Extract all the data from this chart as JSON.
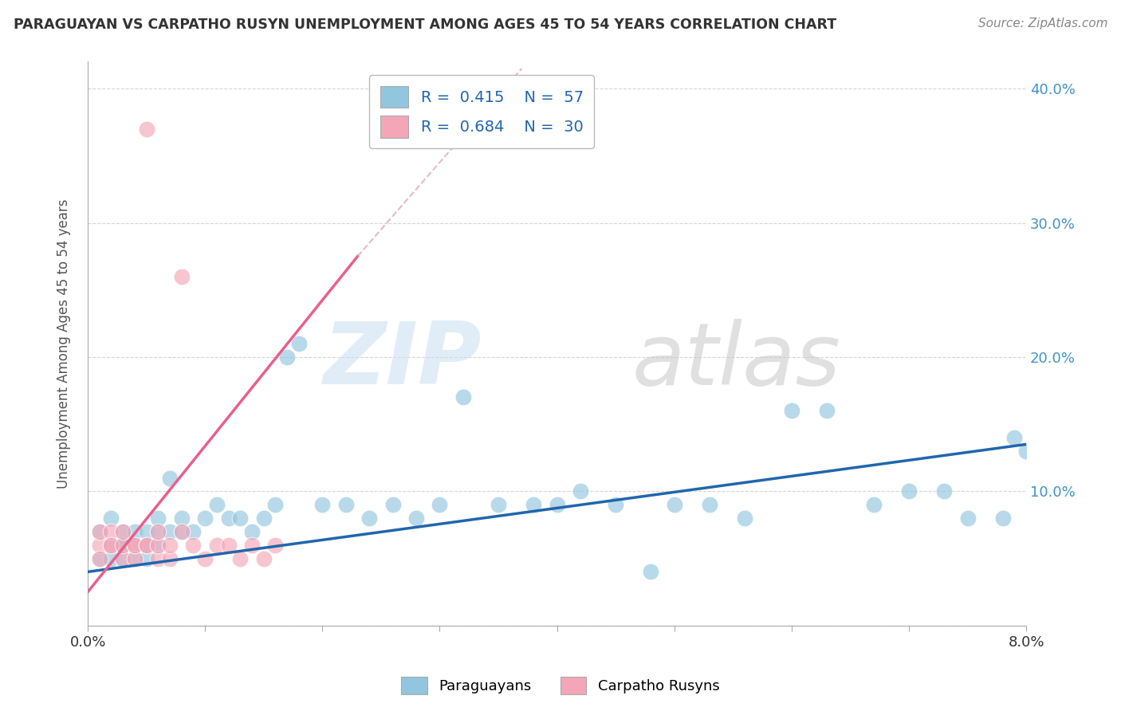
{
  "title": "PARAGUAYAN VS CARPATHO RUSYN UNEMPLOYMENT AMONG AGES 45 TO 54 YEARS CORRELATION CHART",
  "source": "Source: ZipAtlas.com",
  "ylabel": "Unemployment Among Ages 45 to 54 years",
  "legend_label_blue": "Paraguayans",
  "legend_label_pink": "Carpatho Rusyns",
  "blue_color": "#92c5de",
  "pink_color": "#f4a6b8",
  "blue_line_color": "#2166ac",
  "pink_line_color": "#e8608a",
  "pink_dash_color": "#d4a0b0",
  "xlim": [
    0.0,
    0.08
  ],
  "ylim": [
    0.0,
    0.42
  ],
  "blue_scatter_x": [
    0.001,
    0.001,
    0.002,
    0.002,
    0.002,
    0.003,
    0.003,
    0.003,
    0.003,
    0.004,
    0.004,
    0.004,
    0.005,
    0.005,
    0.005,
    0.006,
    0.006,
    0.006,
    0.007,
    0.007,
    0.008,
    0.008,
    0.009,
    0.01,
    0.011,
    0.012,
    0.013,
    0.014,
    0.015,
    0.016,
    0.017,
    0.018,
    0.02,
    0.022,
    0.024,
    0.026,
    0.028,
    0.03,
    0.032,
    0.035,
    0.038,
    0.04,
    0.042,
    0.045,
    0.048,
    0.05,
    0.053,
    0.056,
    0.06,
    0.063,
    0.067,
    0.07,
    0.073,
    0.075,
    0.078,
    0.079,
    0.08
  ],
  "blue_scatter_y": [
    0.05,
    0.07,
    0.06,
    0.05,
    0.08,
    0.05,
    0.06,
    0.07,
    0.06,
    0.05,
    0.06,
    0.07,
    0.05,
    0.06,
    0.07,
    0.06,
    0.07,
    0.08,
    0.07,
    0.11,
    0.07,
    0.08,
    0.07,
    0.08,
    0.09,
    0.08,
    0.08,
    0.07,
    0.08,
    0.09,
    0.2,
    0.21,
    0.09,
    0.09,
    0.08,
    0.09,
    0.08,
    0.09,
    0.17,
    0.09,
    0.09,
    0.09,
    0.1,
    0.09,
    0.04,
    0.09,
    0.09,
    0.08,
    0.16,
    0.16,
    0.09,
    0.1,
    0.1,
    0.08,
    0.08,
    0.14,
    0.13
  ],
  "pink_scatter_x": [
    0.001,
    0.001,
    0.001,
    0.002,
    0.002,
    0.002,
    0.003,
    0.003,
    0.003,
    0.004,
    0.004,
    0.004,
    0.005,
    0.005,
    0.005,
    0.006,
    0.006,
    0.006,
    0.007,
    0.007,
    0.008,
    0.008,
    0.009,
    0.01,
    0.011,
    0.012,
    0.013,
    0.014,
    0.015,
    0.016
  ],
  "pink_scatter_y": [
    0.06,
    0.07,
    0.05,
    0.06,
    0.07,
    0.06,
    0.05,
    0.06,
    0.07,
    0.06,
    0.05,
    0.06,
    0.06,
    0.37,
    0.06,
    0.05,
    0.06,
    0.07,
    0.05,
    0.06,
    0.07,
    0.26,
    0.06,
    0.05,
    0.06,
    0.06,
    0.05,
    0.06,
    0.05,
    0.06
  ],
  "blue_line": {
    "x0": 0.0,
    "x1": 0.08,
    "y0": 0.04,
    "y1": 0.135
  },
  "pink_line": {
    "x0": 0.0,
    "x1": 0.023,
    "y0": 0.025,
    "y1": 0.275
  },
  "pink_dash_line": {
    "x0": 0.023,
    "x1": 0.037,
    "y0": 0.275,
    "y1": 0.415
  },
  "grid_color": "#cccccc",
  "background_color": "#ffffff"
}
